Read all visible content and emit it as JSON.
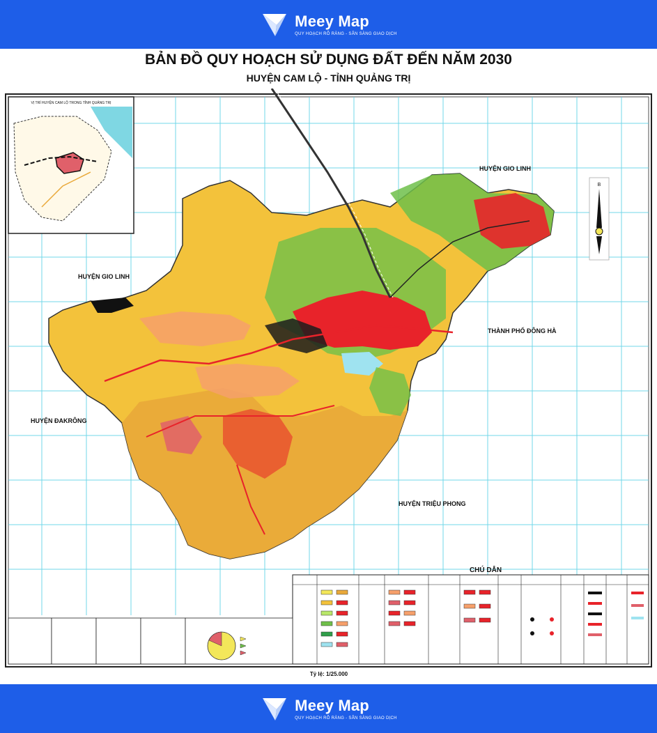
{
  "brand": {
    "name": "Meey Map",
    "tagline": "QUY HOẠCH RÕ RÀNG - SẴN SÀNG GIAO DỊCH",
    "icon": "meey-map-logo-icon"
  },
  "map": {
    "title": "BẢN ĐỒ  QUY HOẠCH SỬ DỤNG ĐẤT ĐẾN NĂM 2030",
    "subtitle": "HUYỆN CAM LỘ - TỈNH QUẢNG TRỊ",
    "scale": "Tỷ lệ: 1/25.000",
    "north": "B",
    "inset_title": "VỊ TRÍ HUYỆN CAM LỘ TRONG TỈNH QUẢNG TRỊ",
    "legend_title": "CHÚ DẪN",
    "neighbors": {
      "gio_linh_ne": "HUYỆN GIO LINH",
      "gio_linh_w": "HUYỆN GIO LINH",
      "dong_ha": "THÀNH PHỐ ĐÔNG HÀ",
      "dakrong": "HUYỆN ĐAKRÔNG",
      "trieu_phong": "HUYỆN TRIỆU PHONG"
    },
    "colors": {
      "residential": "#e8232a",
      "agriculture": "#f3c23b",
      "forest": "#e9a93a",
      "green": "#6fc04a",
      "water": "#9fe3f0",
      "grid": "#5ad1e6"
    }
  }
}
